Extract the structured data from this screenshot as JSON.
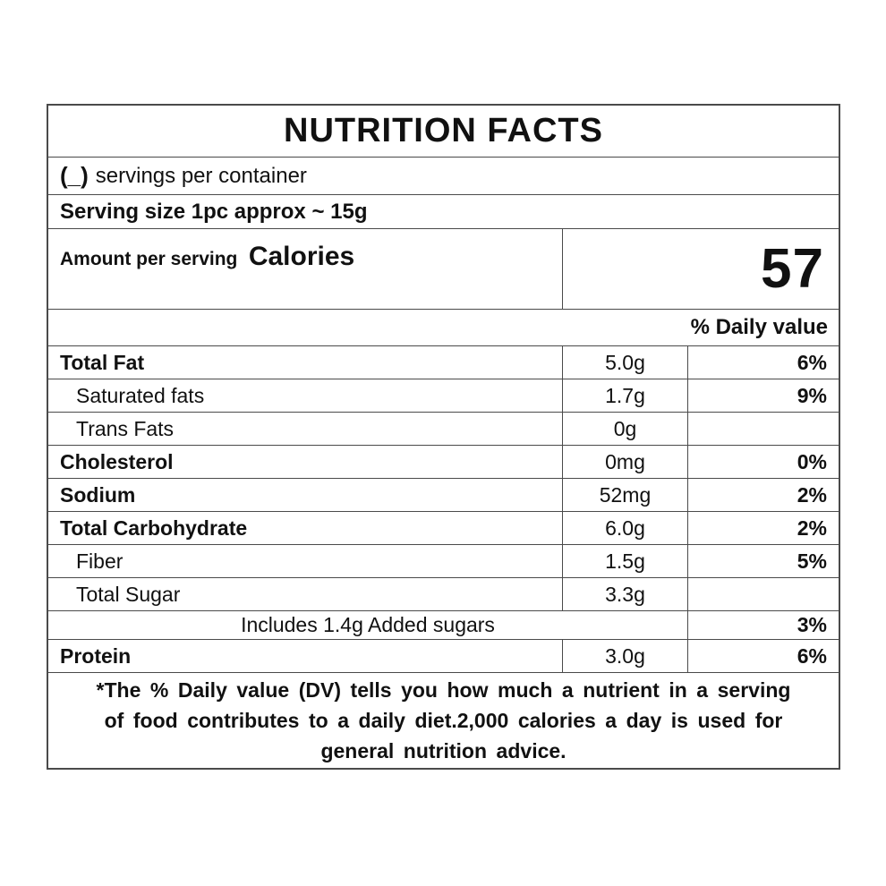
{
  "label": {
    "title": "NUTRITION FACTS",
    "servings_count": "(_)",
    "servings_text": "servings per container",
    "serving_size": "Serving size 1pc approx ~ 15g",
    "amount_per_serving": "Amount per serving",
    "calories_label": "Calories",
    "calories_value": "57",
    "daily_value_header": "% Daily value",
    "colors": {
      "border": "#4a4a4a",
      "text": "#111111",
      "background": "#ffffff"
    },
    "rows": [
      {
        "name": "Total Fat",
        "amount": "5.0g",
        "dv": "6%",
        "bold": true,
        "indent": false,
        "span": false
      },
      {
        "name": "Saturated fats",
        "amount": "1.7g",
        "dv": "9%",
        "bold": false,
        "indent": true,
        "span": false
      },
      {
        "name": "Trans Fats",
        "amount": "0g",
        "dv": "",
        "bold": false,
        "indent": true,
        "span": false
      },
      {
        "name": "Cholesterol",
        "amount": "0mg",
        "dv": "0%",
        "bold": true,
        "indent": false,
        "span": false
      },
      {
        "name": "Sodium",
        "amount": "52mg",
        "dv": "2%",
        "bold": true,
        "indent": false,
        "span": false
      },
      {
        "name": "Total Carbohydrate",
        "amount": "6.0g",
        "dv": "2%",
        "bold": true,
        "indent": false,
        "span": false
      },
      {
        "name": "Fiber",
        "amount": "1.5g",
        "dv": "5%",
        "bold": false,
        "indent": true,
        "span": false
      },
      {
        "name": "Total Sugar",
        "amount": "3.3g",
        "dv": "",
        "bold": false,
        "indent": true,
        "span": false
      },
      {
        "name": "Includes 1.4g Added sugars",
        "amount": "",
        "dv": "3%",
        "bold": false,
        "indent": false,
        "span": true
      },
      {
        "name": "Protein",
        "amount": "3.0g",
        "dv": "6%",
        "bold": true,
        "indent": false,
        "span": false
      }
    ],
    "footnote_lines": [
      "*The % Daily value (DV) tells you how much a nutrient in a serving",
      "of food contributes to a daily diet.2,000 calories a day is used for",
      "general nutrition advice."
    ]
  }
}
